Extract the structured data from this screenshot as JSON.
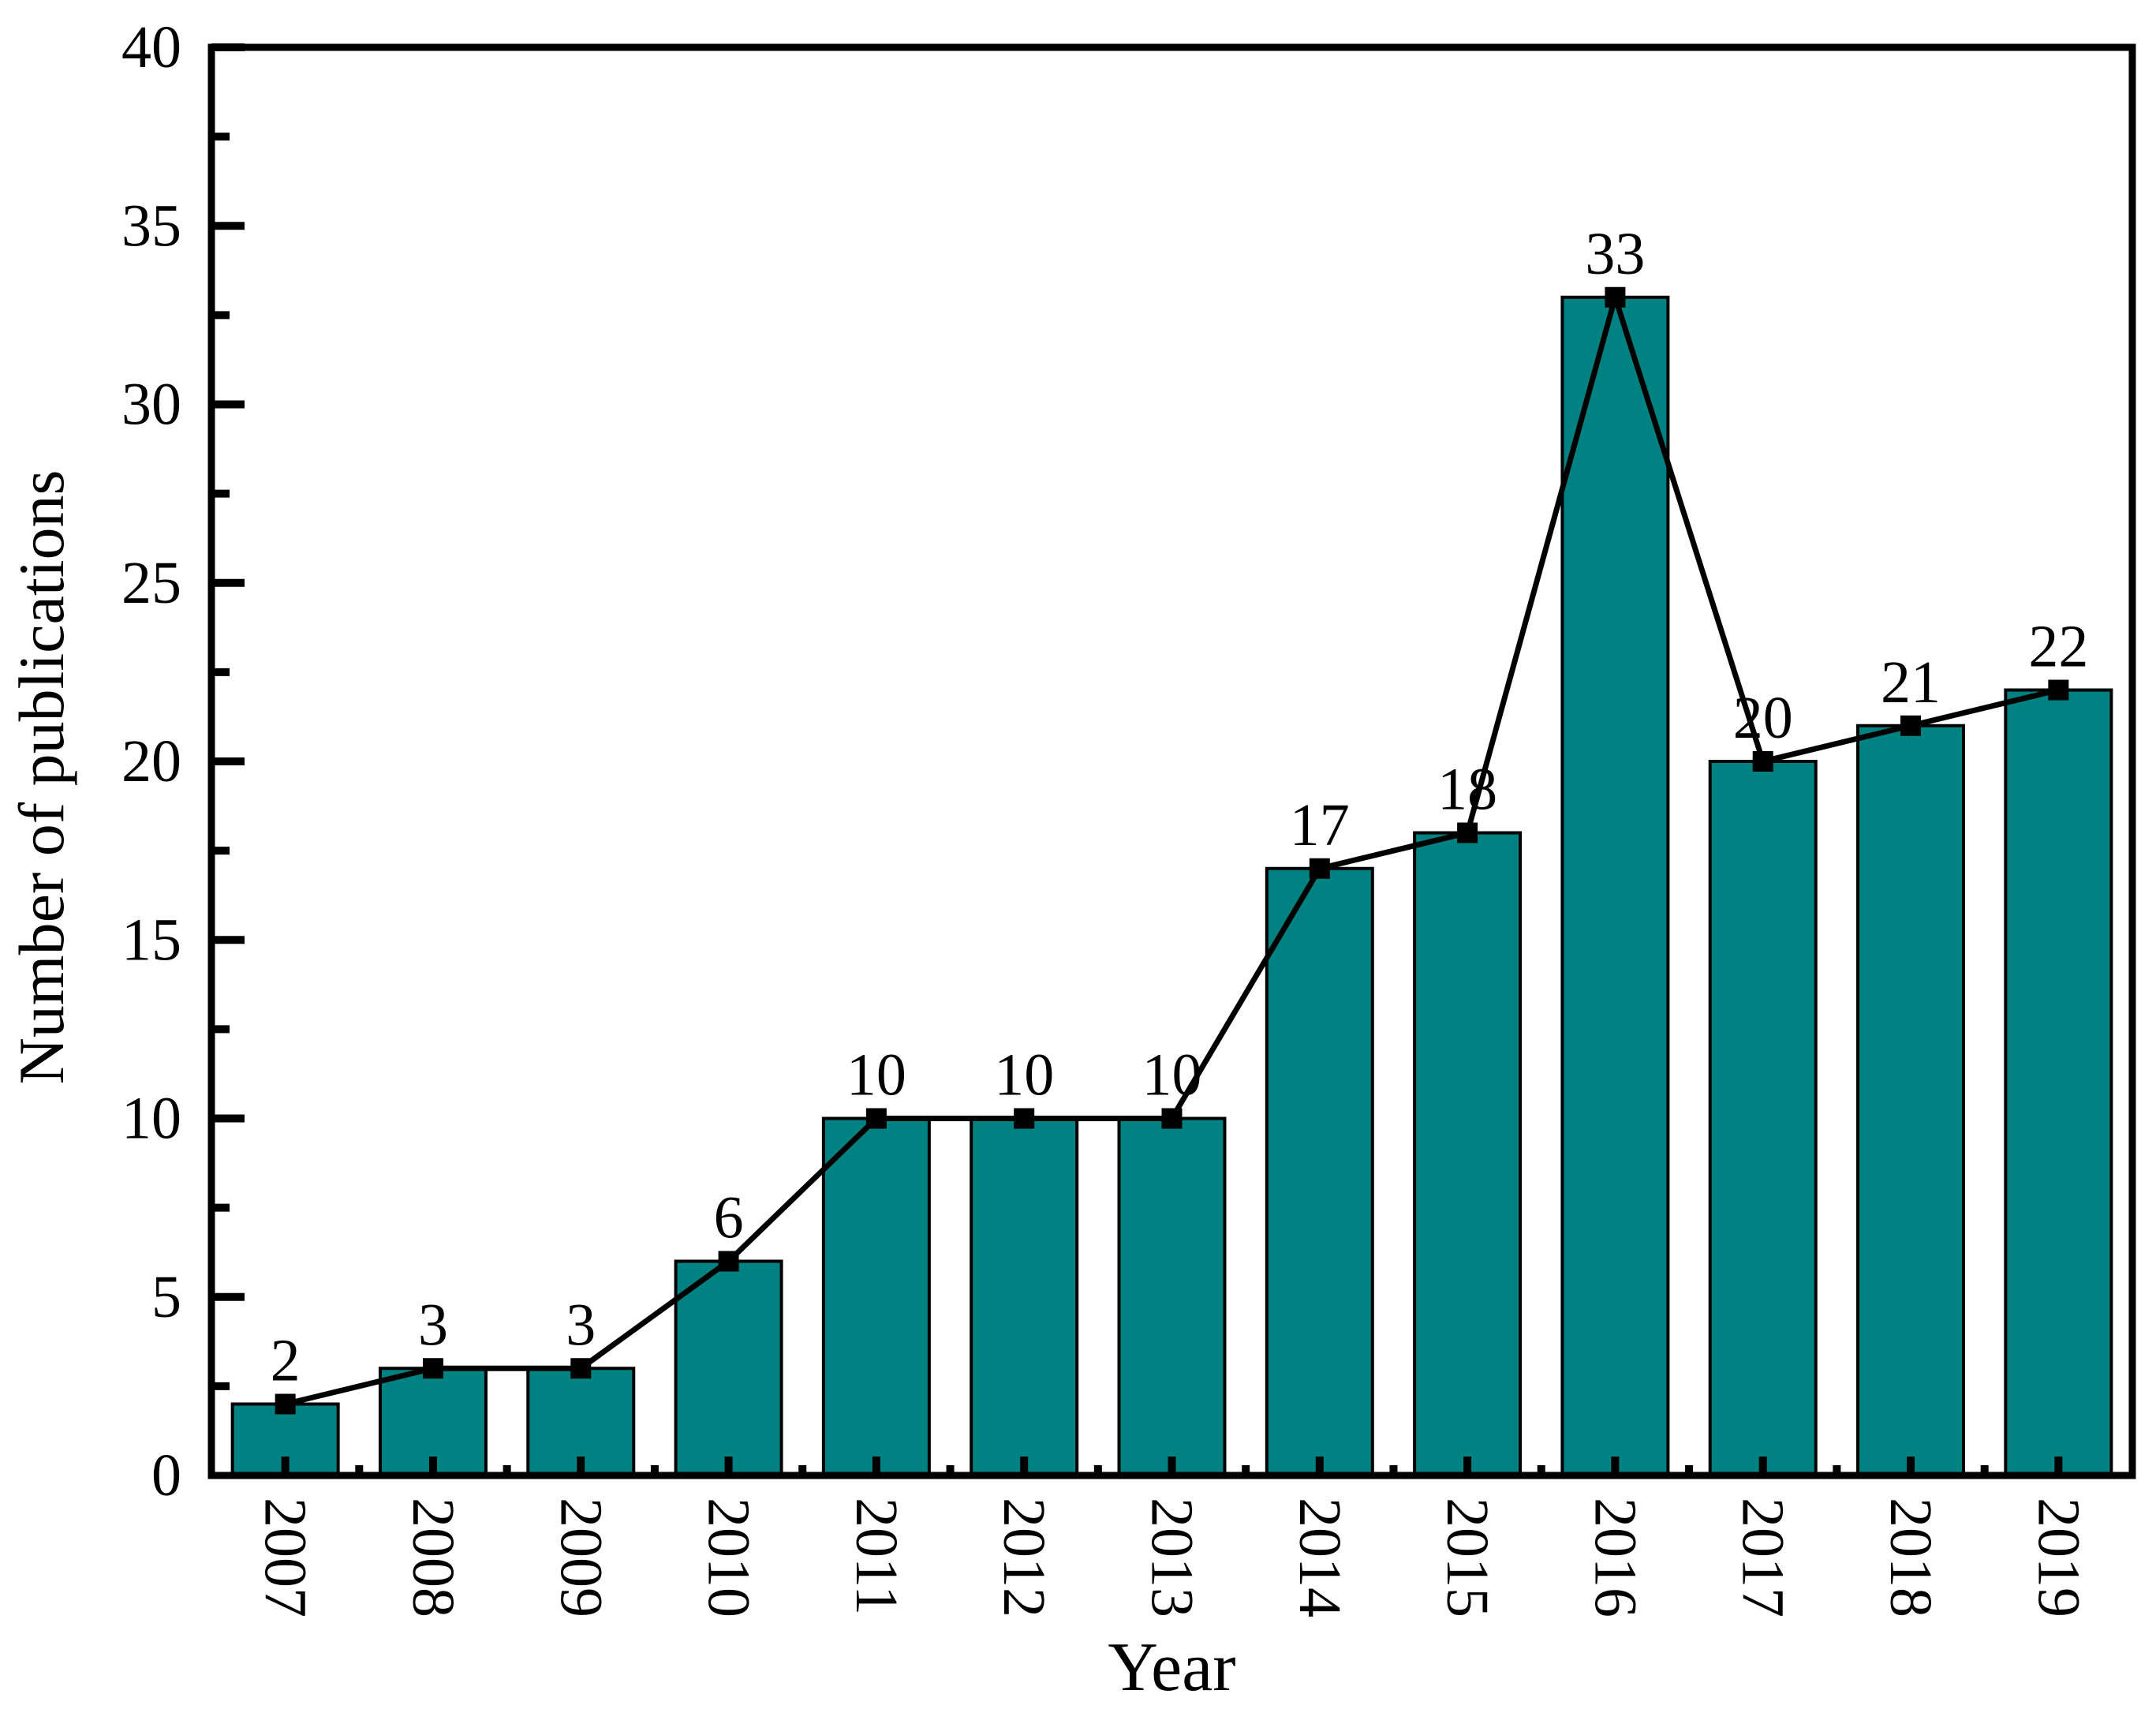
{
  "chart_data": {
    "type": "bar",
    "title": "",
    "xlabel": "Year",
    "ylabel": "Number of publications",
    "categories": [
      "2007",
      "2008",
      "2009",
      "2010",
      "2011",
      "2012",
      "2013",
      "2014",
      "2015",
      "2016",
      "2017",
      "2018",
      "2019"
    ],
    "series": [
      {
        "name": "publications-bars",
        "type": "bar",
        "values": [
          2,
          3,
          3,
          6,
          10,
          10,
          10,
          17,
          18,
          33,
          20,
          21,
          22
        ]
      },
      {
        "name": "publications-trend",
        "type": "line",
        "marker": "square",
        "values": [
          2,
          3,
          3,
          6,
          10,
          10,
          10,
          17,
          18,
          33,
          20,
          21,
          22
        ]
      }
    ],
    "data_labels": [
      "2",
      "3",
      "3",
      "6",
      "10",
      "10",
      "10",
      "17",
      "18",
      "33",
      "20",
      "21",
      "22"
    ],
    "ylim": [
      0,
      40
    ],
    "yticks": [
      0,
      5,
      10,
      15,
      20,
      25,
      30,
      35,
      40
    ],
    "ytick_minor_step": 2.5,
    "grid": false,
    "legend": "none",
    "colors": {
      "bar_fill": "#008182",
      "bar_edge": "#000000",
      "line": "#000000",
      "marker": "#000000",
      "text": "#000000",
      "axis": "#000000",
      "background": "#ffffff"
    }
  }
}
